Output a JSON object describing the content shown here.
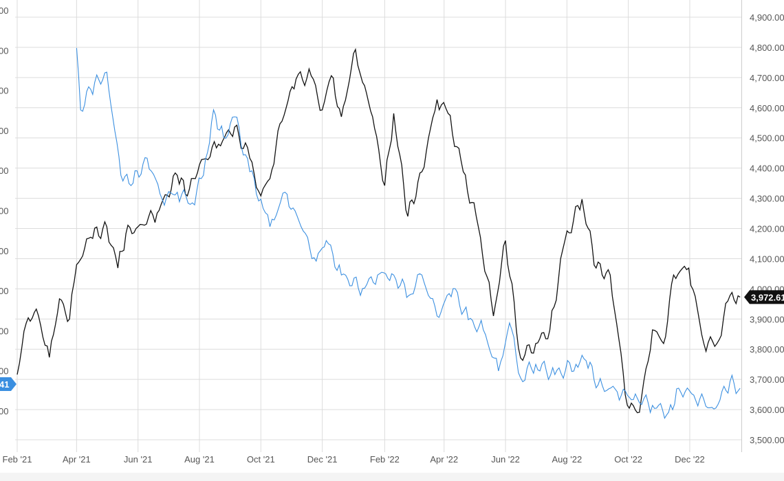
{
  "chart_data": {
    "type": "line",
    "x_ticks": [
      "Feb '21",
      "Apr '21",
      "Jun '21",
      "Aug '21",
      "Oct '21",
      "Dec '21",
      "Feb '22",
      "Apr '22",
      "Jun '22",
      "Aug '22",
      "Oct '22",
      "Dec '22"
    ],
    "x_tick_dates": [
      "2021-02-01",
      "2021-04-01",
      "2021-06-01",
      "2021-08-01",
      "2021-10-01",
      "2021-12-01",
      "2022-02-01",
      "2022-04-01",
      "2022-06-01",
      "2022-08-01",
      "2022-10-01",
      "2022-12-01"
    ],
    "right_axis": {
      "ticks": [
        "4,900.00",
        "4,800.00",
        "4,700.00",
        "4,600.00",
        "4,500.00",
        "4,400.00",
        "4,300.00",
        "4,200.00",
        "4,100.00",
        "4,000.00",
        "3,900.00",
        "3,800.00",
        "3,700.00",
        "3,600.00",
        "3,500.00"
      ],
      "range": [
        3450,
        4920
      ]
    },
    "left_axis": {
      "ticks_visible": [
        "00",
        "00",
        "00",
        "00",
        "00",
        "00",
        "00",
        "00",
        "00",
        "00",
        "00"
      ]
    },
    "grid": true,
    "series": [
      {
        "color": "#111111",
        "axis": "right",
        "last_value_label": "3,972.61",
        "points": [
          [
            "2021-02-01",
            3716
          ],
          [
            "2021-02-10",
            3887
          ],
          [
            "2021-02-20",
            3933
          ],
          [
            "2021-03-05",
            3773
          ],
          [
            "2021-03-15",
            3967
          ],
          [
            "2021-03-25",
            3900
          ],
          [
            "2021-04-01",
            4080
          ],
          [
            "2021-04-15",
            4171
          ],
          [
            "2021-05-01",
            4206
          ],
          [
            "2021-05-12",
            4069
          ],
          [
            "2021-05-20",
            4183
          ],
          [
            "2021-06-01",
            4206
          ],
          [
            "2021-06-20",
            4251
          ],
          [
            "2021-07-10",
            4376
          ],
          [
            "2021-07-20",
            4308
          ],
          [
            "2021-08-01",
            4411
          ],
          [
            "2021-08-20",
            4479
          ],
          [
            "2021-09-05",
            4536
          ],
          [
            "2021-09-20",
            4433
          ],
          [
            "2021-10-01",
            4308
          ],
          [
            "2021-10-10",
            4365
          ],
          [
            "2021-10-20",
            4547
          ],
          [
            "2021-11-05",
            4695
          ],
          [
            "2021-11-20",
            4706
          ],
          [
            "2021-12-01",
            4593
          ],
          [
            "2021-12-10",
            4706
          ],
          [
            "2021-12-20",
            4570
          ],
          [
            "2022-01-03",
            4793
          ],
          [
            "2022-01-10",
            4684
          ],
          [
            "2022-01-20",
            4570
          ],
          [
            "2022-01-28",
            4411
          ],
          [
            "2022-02-01",
            4342
          ],
          [
            "2022-02-10",
            4581
          ],
          [
            "2022-02-24",
            4240
          ],
          [
            "2022-03-10",
            4388
          ],
          [
            "2022-03-25",
            4627
          ],
          [
            "2022-04-05",
            4581
          ],
          [
            "2022-04-20",
            4388
          ],
          [
            "2022-05-05",
            4206
          ],
          [
            "2022-05-20",
            3910
          ],
          [
            "2022-06-01",
            4160
          ],
          [
            "2022-06-16",
            3771
          ],
          [
            "2022-07-01",
            3819
          ],
          [
            "2022-07-15",
            3864
          ],
          [
            "2022-07-30",
            4160
          ],
          [
            "2022-08-16",
            4297
          ],
          [
            "2022-08-30",
            4069
          ],
          [
            "2022-09-13",
            4046
          ],
          [
            "2022-09-30",
            3614
          ],
          [
            "2022-10-12",
            3591
          ],
          [
            "2022-10-25",
            3864
          ],
          [
            "2022-11-05",
            3819
          ],
          [
            "2022-11-15",
            4046
          ],
          [
            "2022-11-30",
            4069
          ],
          [
            "2022-12-15",
            3819
          ],
          [
            "2022-12-28",
            3819
          ],
          [
            "2023-01-10",
            3978
          ],
          [
            "2023-01-20",
            3972.61
          ]
        ]
      },
      {
        "color": "#3b8fe0",
        "axis": "left",
        "last_value_label": "41",
        "points": [
          [
            "2021-04-01",
            4798
          ],
          [
            "2021-04-05",
            4593
          ],
          [
            "2021-04-15",
            4661
          ],
          [
            "2021-05-01",
            4718
          ],
          [
            "2021-05-15",
            4376
          ],
          [
            "2021-05-25",
            4342
          ],
          [
            "2021-06-10",
            4433
          ],
          [
            "2021-06-25",
            4297
          ],
          [
            "2021-07-10",
            4320
          ],
          [
            "2021-07-25",
            4285
          ],
          [
            "2021-08-05",
            4376
          ],
          [
            "2021-08-15",
            4593
          ],
          [
            "2021-08-25",
            4502
          ],
          [
            "2021-09-05",
            4570
          ],
          [
            "2021-09-20",
            4388
          ],
          [
            "2021-10-01",
            4297
          ],
          [
            "2021-10-10",
            4206
          ],
          [
            "2021-10-25",
            4320
          ],
          [
            "2021-11-10",
            4206
          ],
          [
            "2021-11-25",
            4092
          ],
          [
            "2021-12-05",
            4160
          ],
          [
            "2021-12-20",
            4046
          ],
          [
            "2022-01-10",
            4001
          ],
          [
            "2022-01-25",
            4046
          ],
          [
            "2022-02-10",
            4046
          ],
          [
            "2022-02-25",
            3978
          ],
          [
            "2022-03-10",
            4046
          ],
          [
            "2022-03-25",
            3910
          ],
          [
            "2022-04-10",
            4001
          ],
          [
            "2022-04-25",
            3898
          ],
          [
            "2022-05-10",
            3864
          ],
          [
            "2022-05-25",
            3728
          ],
          [
            "2022-06-05",
            3887
          ],
          [
            "2022-06-16",
            3705
          ],
          [
            "2022-07-01",
            3750
          ],
          [
            "2022-07-20",
            3716
          ],
          [
            "2022-08-10",
            3750
          ],
          [
            "2022-08-20",
            3762
          ],
          [
            "2022-09-01",
            3682
          ],
          [
            "2022-09-20",
            3659
          ],
          [
            "2022-10-10",
            3637
          ],
          [
            "2022-10-25",
            3614
          ],
          [
            "2022-11-10",
            3591
          ],
          [
            "2022-11-20",
            3671
          ],
          [
            "2022-12-05",
            3648
          ],
          [
            "2022-12-25",
            3602
          ],
          [
            "2023-01-10",
            3693
          ],
          [
            "2023-01-20",
            3671
          ]
        ]
      }
    ]
  }
}
